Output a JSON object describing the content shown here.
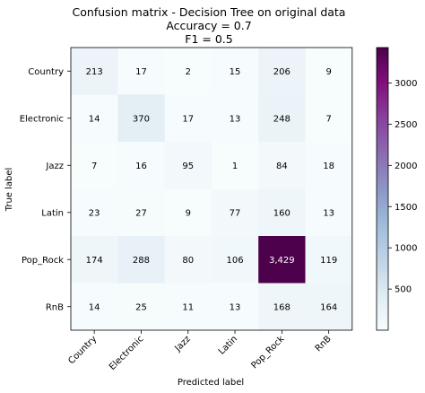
{
  "chart_data": {
    "type": "heatmap",
    "title_lines": [
      "Confusion matrix - Decision Tree on original data",
      "Accuracy = 0.7",
      "F1 = 0.5"
    ],
    "xlabel": "Predicted label",
    "ylabel": "True label",
    "row_labels": [
      "Country",
      "Electronic",
      "Jazz",
      "Latin",
      "Pop_Rock",
      "RnB"
    ],
    "col_labels": [
      "Country",
      "Electronic",
      "Jazz",
      "Latin",
      "Pop_Rock",
      "RnB"
    ],
    "matrix": [
      [
        213,
        17,
        2,
        15,
        206,
        9
      ],
      [
        14,
        370,
        17,
        13,
        248,
        7
      ],
      [
        7,
        16,
        95,
        1,
        84,
        18
      ],
      [
        23,
        27,
        9,
        77,
        160,
        13
      ],
      [
        174,
        288,
        80,
        106,
        3429,
        119
      ],
      [
        14,
        25,
        11,
        13,
        168,
        164
      ]
    ],
    "cell_text": [
      [
        "213",
        "17",
        "2",
        "15",
        "206",
        "9"
      ],
      [
        "14",
        "370",
        "17",
        "13",
        "248",
        "7"
      ],
      [
        "7",
        "16",
        "95",
        "1",
        "84",
        "18"
      ],
      [
        "23",
        "27",
        "9",
        "77",
        "160",
        "13"
      ],
      [
        "174",
        "288",
        "80",
        "106",
        "3,429",
        "119"
      ],
      [
        "14",
        "25",
        "11",
        "13",
        "168",
        "164"
      ]
    ],
    "colormap": "BuPu",
    "color_range": [
      1,
      3429
    ],
    "colorbar_ticks": [
      500,
      1000,
      1500,
      2000,
      2500,
      3000
    ],
    "colorbar_tick_labels": [
      "500",
      "1000",
      "1500",
      "2000",
      "2500",
      "3000"
    ]
  }
}
